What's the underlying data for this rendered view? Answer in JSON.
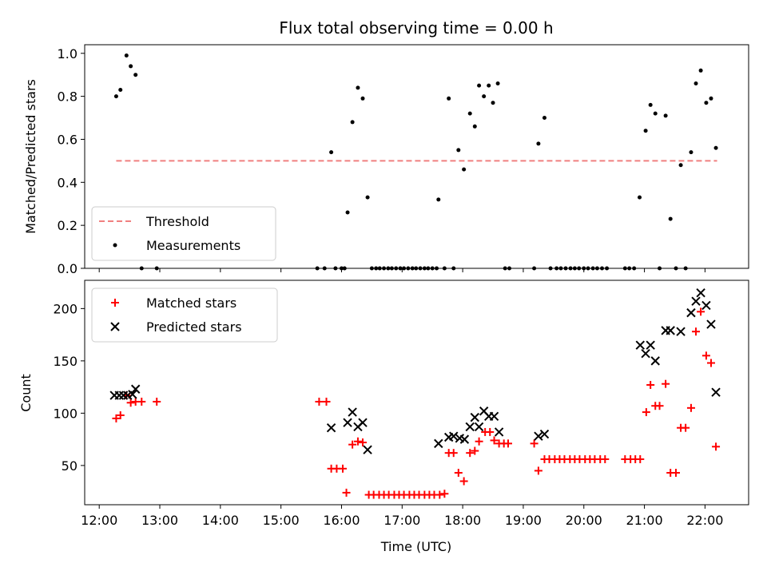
{
  "chart_data": [
    {
      "type": "scatter",
      "title": "Flux total observing time = 0.00 h",
      "xlabel": "",
      "ylabel": "Matched/Predicted stars",
      "ylim": [
        0,
        1.04
      ],
      "yticks": [
        0.0,
        0.2,
        0.4,
        0.6,
        0.8,
        1.0
      ],
      "yticklabels": [
        "0.0",
        "0.2",
        "0.4",
        "0.6",
        "0.8",
        "1.0"
      ],
      "xlim_hours": [
        11.76,
        22.72
      ],
      "legend_location": "lower-left",
      "threshold": {
        "name": "Threshold",
        "value": 0.5,
        "x_start": 12.28,
        "x_end": 22.2,
        "color": "#f08080"
      },
      "series": [
        {
          "name": "Measurements",
          "color": "#000000",
          "points": [
            [
              12.28,
              0.8
            ],
            [
              12.35,
              0.83
            ],
            [
              12.45,
              0.99
            ],
            [
              12.52,
              0.94
            ],
            [
              12.6,
              0.9
            ],
            [
              12.7,
              0.0
            ],
            [
              12.95,
              0.0
            ],
            [
              15.6,
              0.0
            ],
            [
              15.72,
              0.0
            ],
            [
              15.83,
              0.54
            ],
            [
              15.9,
              0.0
            ],
            [
              16.0,
              0.0
            ],
            [
              16.05,
              0.0
            ],
            [
              16.1,
              0.26
            ],
            [
              16.18,
              0.68
            ],
            [
              16.27,
              0.84
            ],
            [
              16.35,
              0.79
            ],
            [
              16.43,
              0.33
            ],
            [
              16.5,
              0.0
            ],
            [
              16.57,
              0.0
            ],
            [
              16.63,
              0.0
            ],
            [
              16.7,
              0.0
            ],
            [
              16.77,
              0.0
            ],
            [
              16.83,
              0.0
            ],
            [
              16.9,
              0.0
            ],
            [
              16.97,
              0.0
            ],
            [
              17.03,
              0.0
            ],
            [
              17.1,
              0.0
            ],
            [
              17.17,
              0.0
            ],
            [
              17.23,
              0.0
            ],
            [
              17.3,
              0.0
            ],
            [
              17.37,
              0.0
            ],
            [
              17.43,
              0.0
            ],
            [
              17.5,
              0.0
            ],
            [
              17.57,
              0.0
            ],
            [
              17.6,
              0.32
            ],
            [
              17.7,
              0.0
            ],
            [
              17.77,
              0.79
            ],
            [
              17.85,
              0.0
            ],
            [
              17.93,
              0.55
            ],
            [
              18.02,
              0.46
            ],
            [
              18.12,
              0.72
            ],
            [
              18.2,
              0.66
            ],
            [
              18.27,
              0.85
            ],
            [
              18.35,
              0.8
            ],
            [
              18.43,
              0.85
            ],
            [
              18.5,
              0.77
            ],
            [
              18.58,
              0.86
            ],
            [
              18.7,
              0.0
            ],
            [
              18.77,
              0.0
            ],
            [
              19.18,
              0.0
            ],
            [
              19.25,
              0.58
            ],
            [
              19.35,
              0.7
            ],
            [
              19.45,
              0.0
            ],
            [
              19.55,
              0.0
            ],
            [
              19.62,
              0.0
            ],
            [
              19.7,
              0.0
            ],
            [
              19.78,
              0.0
            ],
            [
              19.85,
              0.0
            ],
            [
              19.92,
              0.0
            ],
            [
              20.0,
              0.0
            ],
            [
              20.07,
              0.0
            ],
            [
              20.15,
              0.0
            ],
            [
              20.22,
              0.0
            ],
            [
              20.3,
              0.0
            ],
            [
              20.38,
              0.0
            ],
            [
              20.68,
              0.0
            ],
            [
              20.75,
              0.0
            ],
            [
              20.83,
              0.0
            ],
            [
              20.92,
              0.33
            ],
            [
              21.02,
              0.64
            ],
            [
              21.1,
              0.76
            ],
            [
              21.18,
              0.72
            ],
            [
              21.25,
              0.0
            ],
            [
              21.35,
              0.71
            ],
            [
              21.43,
              0.23
            ],
            [
              21.52,
              0.0
            ],
            [
              21.6,
              0.48
            ],
            [
              21.68,
              0.0
            ],
            [
              21.77,
              0.54
            ],
            [
              21.85,
              0.86
            ],
            [
              21.93,
              0.92
            ],
            [
              22.02,
              0.77
            ],
            [
              22.1,
              0.79
            ],
            [
              22.18,
              0.56
            ]
          ]
        }
      ]
    },
    {
      "type": "scatter",
      "title": "",
      "xlabel": "Time (UTC)",
      "ylabel": "Count",
      "ylim": [
        12.5,
        227
      ],
      "yticks": [
        50,
        100,
        150,
        200
      ],
      "yticklabels": [
        "50",
        "100",
        "150",
        "200"
      ],
      "xlim_hours": [
        11.76,
        22.72
      ],
      "xticks": [
        12,
        13,
        14,
        15,
        16,
        17,
        18,
        19,
        20,
        21,
        22
      ],
      "xticklabels": [
        "12:00",
        "13:00",
        "14:00",
        "15:00",
        "16:00",
        "17:00",
        "18:00",
        "19:00",
        "20:00",
        "21:00",
        "22:00"
      ],
      "legend_location": "upper-left",
      "series": [
        {
          "name": "Matched stars",
          "marker": "plus",
          "color": "#ff0000",
          "points": [
            [
              12.28,
              95
            ],
            [
              12.35,
              98
            ],
            [
              12.45,
              117
            ],
            [
              12.52,
              110
            ],
            [
              12.6,
              111
            ],
            [
              12.7,
              111
            ],
            [
              12.95,
              111
            ],
            [
              15.63,
              111
            ],
            [
              15.75,
              111
            ],
            [
              15.83,
              47
            ],
            [
              15.92,
              47
            ],
            [
              16.02,
              47
            ],
            [
              16.08,
              24
            ],
            [
              16.18,
              70
            ],
            [
              16.27,
              73
            ],
            [
              16.35,
              72
            ],
            [
              16.45,
              22
            ],
            [
              16.53,
              22
            ],
            [
              16.62,
              22
            ],
            [
              16.7,
              22
            ],
            [
              16.78,
              22
            ],
            [
              16.87,
              22
            ],
            [
              16.95,
              22
            ],
            [
              17.03,
              22
            ],
            [
              17.12,
              22
            ],
            [
              17.2,
              22
            ],
            [
              17.28,
              22
            ],
            [
              17.37,
              22
            ],
            [
              17.45,
              22
            ],
            [
              17.53,
              22
            ],
            [
              17.62,
              22
            ],
            [
              17.7,
              23
            ],
            [
              17.77,
              62
            ],
            [
              17.85,
              62
            ],
            [
              17.93,
              43
            ],
            [
              18.02,
              35
            ],
            [
              18.12,
              62
            ],
            [
              18.2,
              64
            ],
            [
              18.27,
              73
            ],
            [
              18.37,
              82
            ],
            [
              18.45,
              82
            ],
            [
              18.52,
              74
            ],
            [
              18.6,
              71
            ],
            [
              18.68,
              71
            ],
            [
              18.75,
              71
            ],
            [
              19.18,
              71
            ],
            [
              19.25,
              45
            ],
            [
              19.35,
              56
            ],
            [
              19.43,
              56
            ],
            [
              19.52,
              56
            ],
            [
              19.6,
              56
            ],
            [
              19.68,
              56
            ],
            [
              19.77,
              56
            ],
            [
              19.85,
              56
            ],
            [
              19.93,
              56
            ],
            [
              20.02,
              56
            ],
            [
              20.1,
              56
            ],
            [
              20.18,
              56
            ],
            [
              20.27,
              56
            ],
            [
              20.35,
              56
            ],
            [
              20.68,
              56
            ],
            [
              20.77,
              56
            ],
            [
              20.85,
              56
            ],
            [
              20.93,
              56
            ],
            [
              21.03,
              101
            ],
            [
              21.1,
              127
            ],
            [
              21.18,
              107
            ],
            [
              21.25,
              107
            ],
            [
              21.35,
              128
            ],
            [
              21.43,
              43
            ],
            [
              21.52,
              43
            ],
            [
              21.6,
              86
            ],
            [
              21.68,
              86
            ],
            [
              21.77,
              105
            ],
            [
              21.85,
              178
            ],
            [
              21.93,
              197
            ],
            [
              22.02,
              155
            ],
            [
              22.1,
              148
            ],
            [
              22.18,
              68
            ]
          ]
        },
        {
          "name": "Predicted stars",
          "marker": "x",
          "color": "#000000",
          "points": [
            [
              12.25,
              117
            ],
            [
              12.33,
              117
            ],
            [
              12.4,
              117
            ],
            [
              12.47,
              117
            ],
            [
              12.55,
              118
            ],
            [
              12.6,
              123
            ],
            [
              15.83,
              86
            ],
            [
              16.1,
              91
            ],
            [
              16.18,
              101
            ],
            [
              16.27,
              87
            ],
            [
              16.35,
              91
            ],
            [
              16.43,
              65
            ],
            [
              17.6,
              71
            ],
            [
              17.77,
              77
            ],
            [
              17.85,
              78
            ],
            [
              17.95,
              76
            ],
            [
              18.03,
              75
            ],
            [
              18.12,
              87
            ],
            [
              18.2,
              96
            ],
            [
              18.27,
              87
            ],
            [
              18.35,
              102
            ],
            [
              18.43,
              97
            ],
            [
              18.52,
              97
            ],
            [
              18.6,
              82
            ],
            [
              19.25,
              78
            ],
            [
              19.35,
              80
            ],
            [
              20.93,
              165
            ],
            [
              21.02,
              157
            ],
            [
              21.1,
              165
            ],
            [
              21.18,
              150
            ],
            [
              21.35,
              179
            ],
            [
              21.43,
              179
            ],
            [
              21.6,
              178
            ],
            [
              21.77,
              196
            ],
            [
              21.85,
              207
            ],
            [
              21.93,
              215
            ],
            [
              22.02,
              203
            ],
            [
              22.1,
              185
            ],
            [
              22.18,
              120
            ]
          ]
        }
      ]
    }
  ]
}
